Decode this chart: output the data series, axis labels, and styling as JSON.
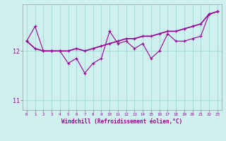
{
  "xlabel": "Windchill (Refroidissement éolien,°C)",
  "ylabel": "",
  "bg_color": "#cff0ee",
  "grid_color": "#aadddd",
  "line_color": "#990099",
  "x_hours": [
    0,
    1,
    2,
    3,
    4,
    5,
    6,
    7,
    8,
    9,
    10,
    11,
    12,
    13,
    14,
    15,
    16,
    17,
    18,
    19,
    20,
    21,
    22,
    23
  ],
  "y_main": [
    12.2,
    12.5,
    12.0,
    12.0,
    12.0,
    11.75,
    11.85,
    11.55,
    11.75,
    11.85,
    12.4,
    12.15,
    12.2,
    12.05,
    12.15,
    11.85,
    12.0,
    12.35,
    12.2,
    12.2,
    12.25,
    12.3,
    12.75,
    12.8
  ],
  "y_trend": [
    12.2,
    12.05,
    12.0,
    12.0,
    12.0,
    12.0,
    12.05,
    12.0,
    12.05,
    12.1,
    12.15,
    12.2,
    12.25,
    12.25,
    12.3,
    12.3,
    12.35,
    12.4,
    12.4,
    12.45,
    12.5,
    12.55,
    12.75,
    12.8
  ],
  "ylim": [
    10.8,
    12.95
  ],
  "yticks": [
    11,
    12
  ],
  "xlim": [
    -0.5,
    23.5
  ]
}
